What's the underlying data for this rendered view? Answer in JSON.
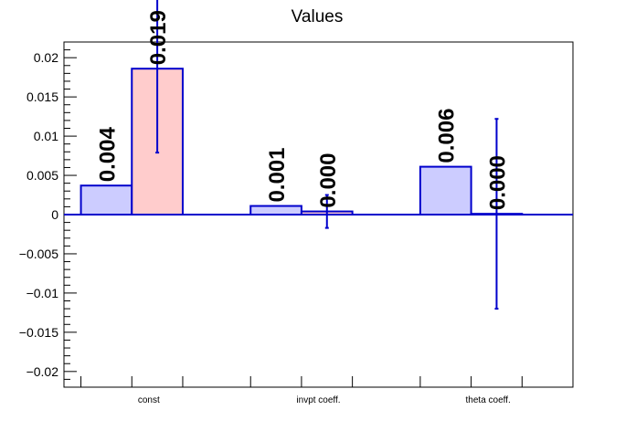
{
  "chart_data": {
    "type": "bar",
    "title": "Values",
    "xlabel": "",
    "ylabel": "",
    "categories": [
      "const",
      "invpt coeff.",
      "theta coeff."
    ],
    "ylim": [
      -0.022,
      0.022
    ],
    "yticks": [
      {
        "value": 0.02,
        "label": "0.02"
      },
      {
        "value": 0.015,
        "label": "0.015"
      },
      {
        "value": 0.01,
        "label": "0.01"
      },
      {
        "value": 0.005,
        "label": "0.005"
      },
      {
        "value": 0,
        "label": "0"
      },
      {
        "value": -0.005,
        "label": "−0.005"
      },
      {
        "value": -0.01,
        "label": "−0.01"
      },
      {
        "value": -0.015,
        "label": "−0.015"
      },
      {
        "value": -0.02,
        "label": "−0.02"
      }
    ],
    "series": [
      {
        "values": [
          0.0037,
          0.0011,
          0.0061
        ],
        "labels": [
          "0.004",
          "0.001",
          "0.006"
        ],
        "color": "#ccccff",
        "edge_color": "#0000cc",
        "errors": null
      },
      {
        "values": [
          0.0186,
          0.0004,
          0.0001
        ],
        "labels": [
          "0.019",
          "0.000",
          "0.000"
        ],
        "color": "#ffcccc",
        "edge_color": "#0000cc",
        "errors": [
          0.0107,
          0.0021,
          0.0121
        ]
      }
    ],
    "grid": false,
    "legend": "none"
  }
}
